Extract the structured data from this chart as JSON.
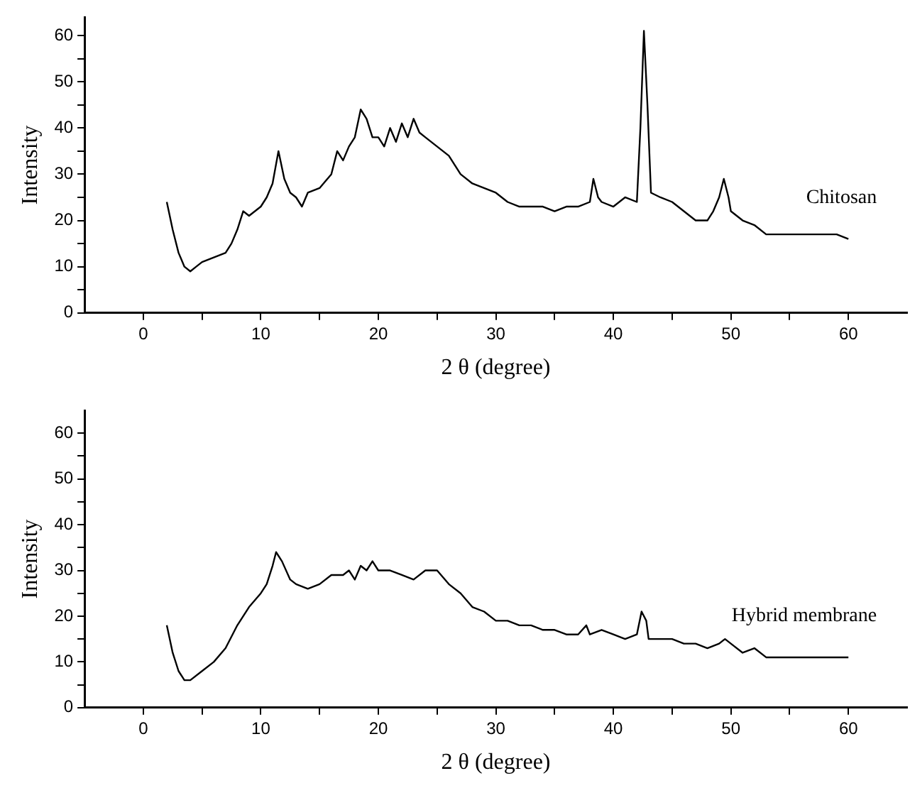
{
  "chart_data": [
    {
      "type": "line",
      "xlabel": "2 θ (degree)",
      "ylabel": "Intensity",
      "xlim": [
        -5,
        65
      ],
      "ylim": [
        0,
        64
      ],
      "xticks": [
        0,
        {
          "value": 5,
          "label": null
        },
        10,
        {
          "value": 15,
          "label": null
        },
        20,
        {
          "value": 25,
          "label": null
        },
        30,
        {
          "value": 35,
          "label": null
        },
        40,
        {
          "value": 45,
          "label": null
        },
        50,
        {
          "value": 55,
          "label": null
        },
        60
      ],
      "yticks": [
        0,
        {
          "value": 5,
          "label": null
        },
        10,
        {
          "value": 15,
          "label": null
        },
        20,
        {
          "value": 25,
          "label": null
        },
        30,
        {
          "value": 35,
          "label": null
        },
        40,
        {
          "value": 45,
          "label": null
        },
        50,
        {
          "value": 55,
          "label": null
        },
        60
      ],
      "x": [
        2,
        2.5,
        3,
        3.5,
        4,
        4.5,
        5,
        6,
        7,
        7.5,
        8,
        8.5,
        9,
        9.5,
        10,
        10.5,
        11,
        11.5,
        12,
        12.5,
        13,
        13.5,
        14,
        15,
        16,
        16.5,
        17,
        17.5,
        18,
        18.5,
        19,
        19.5,
        20,
        20.5,
        21,
        21.5,
        22,
        22.5,
        23,
        23.5,
        24,
        25,
        26,
        27,
        28,
        29,
        30,
        31,
        32,
        33,
        34,
        35,
        36,
        37,
        38,
        38.3,
        38.7,
        39,
        40,
        41,
        42,
        42.3,
        42.6,
        42.9,
        43.2,
        44,
        45,
        46,
        47,
        48,
        48.5,
        49,
        49.4,
        49.8,
        50,
        51,
        52,
        53,
        54,
        55,
        56,
        57,
        58,
        59,
        60
      ],
      "series": [
        {
          "name": "Chitosan",
          "color": "#000000",
          "values": [
            24,
            18,
            13,
            10,
            9,
            10,
            11,
            12,
            13,
            15,
            18,
            22,
            21,
            22,
            23,
            25,
            28,
            35,
            29,
            26,
            25,
            23,
            26,
            27,
            30,
            35,
            33,
            36,
            38,
            44,
            42,
            38,
            38,
            36,
            40,
            37,
            41,
            38,
            42,
            39,
            38,
            36,
            34,
            30,
            28,
            27,
            26,
            24,
            23,
            23,
            23,
            22,
            23,
            23,
            24,
            29,
            25,
            24,
            23,
            25,
            24,
            40,
            61,
            45,
            26,
            25,
            24,
            22,
            20,
            20,
            22,
            25,
            29,
            25,
            22,
            20,
            19,
            17,
            17,
            17,
            17,
            17,
            17,
            17,
            16
          ]
        }
      ]
    },
    {
      "type": "line",
      "xlabel": "2 θ (degree)",
      "ylabel": "Intensity",
      "xlim": [
        -5,
        65
      ],
      "ylim": [
        0,
        65
      ],
      "xticks": [
        0,
        {
          "value": 5,
          "label": null
        },
        10,
        {
          "value": 15,
          "label": null
        },
        20,
        {
          "value": 25,
          "label": null
        },
        30,
        {
          "value": 35,
          "label": null
        },
        40,
        {
          "value": 45,
          "label": null
        },
        50,
        {
          "value": 55,
          "label": null
        },
        60
      ],
      "yticks": [
        0,
        {
          "value": 5,
          "label": null
        },
        10,
        {
          "value": 15,
          "label": null
        },
        20,
        {
          "value": 25,
          "label": null
        },
        30,
        {
          "value": 35,
          "label": null
        },
        40,
        {
          "value": 45,
          "label": null
        },
        50,
        {
          "value": 55,
          "label": null
        },
        60
      ],
      "x": [
        2,
        2.5,
        3,
        3.5,
        4,
        5,
        6,
        7,
        8,
        9,
        10,
        10.5,
        11,
        11.3,
        11.8,
        12.5,
        13,
        14,
        15,
        16,
        17,
        17.5,
        18,
        18.5,
        19,
        19.5,
        20,
        21,
        22,
        23,
        24,
        25,
        26,
        27,
        28,
        29,
        30,
        31,
        32,
        33,
        34,
        35,
        36,
        37,
        37.7,
        38,
        39,
        40,
        41,
        42,
        42.4,
        42.8,
        43,
        44,
        45,
        46,
        47,
        48,
        49,
        49.5,
        50,
        51,
        52,
        53,
        54,
        55,
        56,
        57,
        58,
        59,
        60
      ],
      "series": [
        {
          "name": "Hybrid membrane",
          "color": "#000000",
          "values": [
            18,
            12,
            8,
            6,
            6,
            8,
            10,
            13,
            18,
            22,
            25,
            27,
            31,
            34,
            32,
            28,
            27,
            26,
            27,
            29,
            29,
            30,
            28,
            31,
            30,
            32,
            30,
            30,
            29,
            28,
            30,
            30,
            27,
            25,
            22,
            21,
            19,
            19,
            18,
            18,
            17,
            17,
            16,
            16,
            18,
            16,
            17,
            16,
            15,
            16,
            21,
            19,
            15,
            15,
            15,
            14,
            14,
            13,
            14,
            15,
            14,
            12,
            13,
            11,
            11,
            11,
            11,
            11,
            11,
            11,
            11
          ]
        }
      ]
    }
  ]
}
